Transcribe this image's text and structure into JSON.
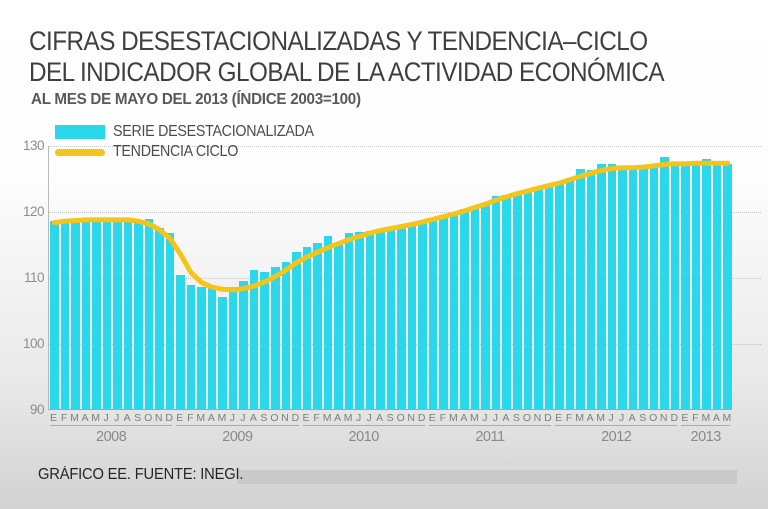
{
  "page": {
    "title_line1": "CIFRAS DESESTACIONALIZADAS Y TENDENCIA–CICLO",
    "title_line2": "DEL INDICADOR GLOBAL DE LA ACTIVIDAD ECONÓMICA",
    "subtitle": "AL MES DE MAYO DEL 2013 (ÍNDICE 2003=100)",
    "footer": "GRÁFICO EE. FUENTE: INEGI."
  },
  "legend": {
    "items": [
      {
        "label": "SERIE DESESTACIONALIZADA",
        "color": "#2BD7EB",
        "shape": "bar"
      },
      {
        "label": "TENDENCIA CICLO",
        "color": "#F5C41A",
        "shape": "line"
      }
    ]
  },
  "colors": {
    "bars": "#2BD7EB",
    "trend_line": "#F5C41A",
    "title_text": "#3F3F3F",
    "axis_text": "#8D8D8D",
    "gridline": "#C6C6C6",
    "footer_band": "#C9C9C9"
  },
  "chart_data": {
    "type": "bar",
    "title": "CIFRAS DESESTACIONALIZADAS Y TENDENCIA–CICLO DEL INDICADOR GLOBAL DE LA ACTIVIDAD ECONÓMICA",
    "subtitle": "AL MES DE MAYO DEL 2013 (ÍNDICE 2003=100)",
    "xlabel": "",
    "ylabel": "Índice 2003=100",
    "ylim": [
      90,
      130
    ],
    "y_ticks": [
      130,
      120,
      110,
      100,
      90
    ],
    "grid": "horizontal-dotted",
    "legend_position": "top-left-inside",
    "x_groups": [
      {
        "year": "2008",
        "months": [
          "E",
          "F",
          "M",
          "A",
          "M",
          "J",
          "J",
          "A",
          "S",
          "O",
          "N",
          "D"
        ]
      },
      {
        "year": "2009",
        "months": [
          "E",
          "F",
          "M",
          "A",
          "M",
          "J",
          "J",
          "A",
          "S",
          "O",
          "N",
          "D"
        ]
      },
      {
        "year": "2010",
        "months": [
          "E",
          "F",
          "M",
          "A",
          "M",
          "J",
          "J",
          "A",
          "S",
          "O",
          "N",
          "D"
        ]
      },
      {
        "year": "2011",
        "months": [
          "E",
          "F",
          "M",
          "A",
          "M",
          "J",
          "J",
          "A",
          "S",
          "O",
          "N",
          "D"
        ]
      },
      {
        "year": "2012",
        "months": [
          "E",
          "F",
          "M",
          "A",
          "M",
          "J",
          "J",
          "A",
          "S",
          "O",
          "N",
          "D"
        ]
      },
      {
        "year": "2013",
        "months": [
          "E",
          "F",
          "M",
          "A",
          "M"
        ]
      }
    ],
    "series": [
      {
        "name": "SERIE DESESTACIONALIZADA",
        "type": "bar",
        "color": "#2BD7EB",
        "values": [
          118.6,
          118.3,
          119.0,
          118.8,
          118.5,
          118.9,
          119.0,
          118.8,
          118.7,
          118.9,
          117.6,
          116.8,
          110.4,
          109.0,
          108.7,
          108.5,
          107.1,
          108.6,
          109.5,
          111.2,
          110.9,
          111.6,
          112.4,
          114.0,
          114.7,
          115.3,
          116.3,
          115.2,
          116.8,
          116.9,
          117.1,
          117.5,
          117.3,
          117.8,
          118.1,
          118.4,
          118.9,
          119.3,
          119.8,
          120.4,
          120.8,
          121.3,
          122.4,
          122.6,
          122.9,
          123.3,
          123.6,
          123.9,
          124.2,
          125.1,
          126.5,
          126.4,
          127.3,
          127.2,
          126.5,
          126.4,
          126.6,
          127.1,
          128.4,
          127.1,
          127.3,
          127.5,
          128.0,
          127.5,
          127.2
        ]
      },
      {
        "name": "TENDENCIA CICLO",
        "type": "line",
        "color": "#F5C41A",
        "values": [
          118.4,
          118.6,
          118.7,
          118.8,
          118.8,
          118.8,
          118.8,
          118.8,
          118.6,
          118.2,
          117.3,
          116.0,
          113.6,
          110.8,
          109.3,
          108.6,
          108.3,
          108.2,
          108.4,
          108.8,
          109.4,
          110.2,
          111.2,
          112.3,
          113.2,
          113.9,
          114.6,
          115.2,
          115.8,
          116.3,
          116.8,
          117.2,
          117.5,
          117.8,
          118.1,
          118.5,
          118.9,
          119.3,
          119.7,
          120.2,
          120.7,
          121.2,
          121.8,
          122.3,
          122.8,
          123.2,
          123.6,
          124.0,
          124.4,
          124.9,
          125.4,
          125.9,
          126.3,
          126.6,
          126.7,
          126.7,
          126.8,
          127.0,
          127.2,
          127.3,
          127.3,
          127.4,
          127.4,
          127.4,
          127.4
        ]
      }
    ]
  }
}
